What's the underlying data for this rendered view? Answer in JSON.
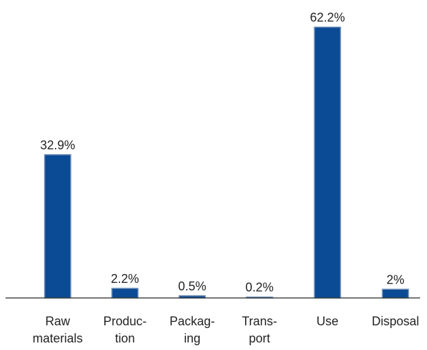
{
  "chart_data": {
    "type": "bar",
    "categories": [
      [
        "Raw",
        "materials"
      ],
      [
        "Produc-",
        "tion"
      ],
      [
        "Packag-",
        "ing"
      ],
      [
        "Trans-",
        "port"
      ],
      [
        "Use"
      ],
      [
        "Disposal"
      ]
    ],
    "values": [
      32.9,
      2.2,
      0.5,
      0.2,
      62.2,
      2
    ],
    "data_labels": [
      "32.9%",
      "2.2%",
      "0.5%",
      "0.2%",
      "62.2%",
      "2%"
    ],
    "ylim": [
      0,
      64.5
    ],
    "grid": false,
    "colors": {
      "bar": "#0b4a94",
      "bar_edge": "#6f8fb8",
      "text": "#222222"
    }
  }
}
